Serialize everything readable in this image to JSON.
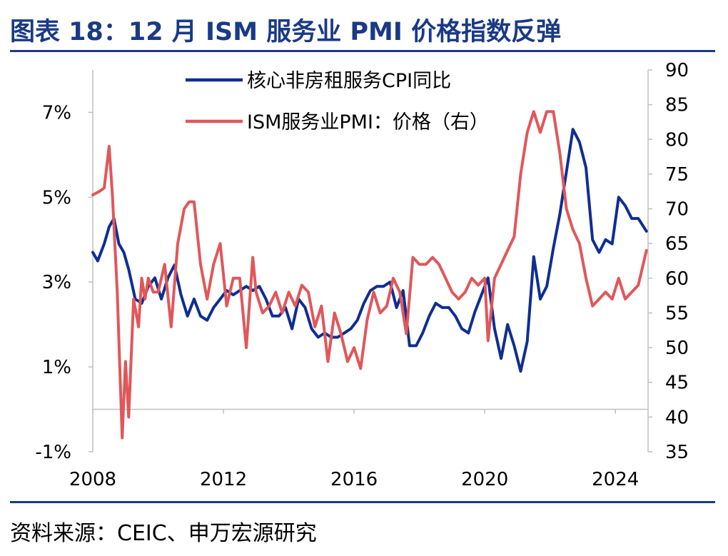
{
  "header": {
    "title": "图表 18：12 月 ISM 服务业 PMI 价格指数反弹"
  },
  "footer": {
    "source": "资料来源：CEIC、申万宏源研究"
  },
  "chart_data": {
    "type": "line",
    "title": "图表 18：12 月 ISM 服务业 PMI 价格指数反弹",
    "x_ticks": [
      "2008",
      "2012",
      "2016",
      "2020",
      "2024"
    ],
    "xlim": [
      2008.0,
      2025.0
    ],
    "left_axis": {
      "ticks": [
        "7%",
        "5%",
        "3%",
        "1%",
        "-1%"
      ],
      "ylim": [
        -1,
        8
      ]
    },
    "right_axis": {
      "ticks": [
        "90",
        "85",
        "80",
        "75",
        "70",
        "65",
        "60",
        "55",
        "50",
        "45",
        "40",
        "35"
      ],
      "ylim": [
        35,
        90
      ]
    },
    "legend_position": "top-center",
    "series": [
      {
        "name": "核心非房租服务CPI同比",
        "axis": "left",
        "color": "#0f2e92",
        "x": [
          2008.0,
          2008.15,
          2008.35,
          2008.5,
          2008.65,
          2008.8,
          2008.95,
          2009.1,
          2009.3,
          2009.5,
          2009.7,
          2009.9,
          2010.1,
          2010.3,
          2010.5,
          2010.7,
          2010.9,
          2011.1,
          2011.3,
          2011.5,
          2011.7,
          2011.9,
          2012.1,
          2012.3,
          2012.5,
          2012.7,
          2012.9,
          2013.1,
          2013.3,
          2013.5,
          2013.7,
          2013.9,
          2014.1,
          2014.3,
          2014.5,
          2014.7,
          2014.9,
          2015.1,
          2015.3,
          2015.5,
          2015.7,
          2015.9,
          2016.1,
          2016.3,
          2016.5,
          2016.7,
          2016.9,
          2017.1,
          2017.3,
          2017.5,
          2017.7,
          2017.9,
          2018.1,
          2018.3,
          2018.5,
          2018.7,
          2018.9,
          2019.1,
          2019.3,
          2019.5,
          2019.7,
          2019.9,
          2020.1,
          2020.3,
          2020.5,
          2020.7,
          2020.9,
          2021.1,
          2021.3,
          2021.5,
          2021.7,
          2021.9,
          2022.1,
          2022.3,
          2022.5,
          2022.7,
          2022.9,
          2023.1,
          2023.3,
          2023.5,
          2023.7,
          2023.9,
          2024.1,
          2024.3,
          2024.5,
          2024.7,
          2024.95
        ],
        "values": [
          3.7,
          3.5,
          3.9,
          4.3,
          4.5,
          3.9,
          3.7,
          3.3,
          2.6,
          2.5,
          2.9,
          3.1,
          2.6,
          3.1,
          3.4,
          2.7,
          2.2,
          2.6,
          2.2,
          2.1,
          2.4,
          2.6,
          2.8,
          2.7,
          2.8,
          2.9,
          2.8,
          2.9,
          2.6,
          2.2,
          2.2,
          2.4,
          1.9,
          2.6,
          2.4,
          1.9,
          1.7,
          1.8,
          1.7,
          1.7,
          1.8,
          1.9,
          2.1,
          2.5,
          2.8,
          2.9,
          2.9,
          3.0,
          2.4,
          2.8,
          1.5,
          1.5,
          1.8,
          2.2,
          2.5,
          2.4,
          2.4,
          2.2,
          1.9,
          1.8,
          2.3,
          2.7,
          3.1,
          1.9,
          1.2,
          2.0,
          1.5,
          0.9,
          1.6,
          3.6,
          2.6,
          2.9,
          3.8,
          4.6,
          5.6,
          6.6,
          6.3,
          5.7,
          4.0,
          3.7,
          4.0,
          3.9,
          5.0,
          4.8,
          4.5,
          4.5,
          4.2
        ]
      },
      {
        "name": "ISM服务业PMI：价格（右）",
        "axis": "right",
        "color": "#e0575a",
        "x": [
          2008.0,
          2008.2,
          2008.35,
          2008.5,
          2008.6,
          2008.75,
          2008.9,
          2009.0,
          2009.1,
          2009.25,
          2009.4,
          2009.5,
          2009.6,
          2009.7,
          2009.85,
          2010.0,
          2010.2,
          2010.4,
          2010.6,
          2010.8,
          2010.95,
          2011.1,
          2011.3,
          2011.5,
          2011.7,
          2011.9,
          2012.1,
          2012.3,
          2012.5,
          2012.7,
          2012.9,
          2013.0,
          2013.2,
          2013.4,
          2013.6,
          2013.8,
          2014.0,
          2014.2,
          2014.4,
          2014.6,
          2014.8,
          2015.0,
          2015.2,
          2015.4,
          2015.6,
          2015.8,
          2016.0,
          2016.2,
          2016.4,
          2016.6,
          2016.8,
          2017.0,
          2017.2,
          2017.4,
          2017.6,
          2017.8,
          2018.0,
          2018.2,
          2018.4,
          2018.6,
          2018.8,
          2019.0,
          2019.2,
          2019.4,
          2019.6,
          2019.8,
          2020.0,
          2020.1,
          2020.3,
          2020.5,
          2020.7,
          2020.9,
          2021.1,
          2021.3,
          2021.5,
          2021.7,
          2021.9,
          2022.1,
          2022.3,
          2022.5,
          2022.7,
          2022.9,
          2023.1,
          2023.3,
          2023.5,
          2023.7,
          2023.9,
          2024.1,
          2024.3,
          2024.5,
          2024.7,
          2024.95
        ],
        "values": [
          72,
          72.5,
          73,
          79,
          72,
          58,
          37,
          48,
          40,
          57,
          53,
          60,
          57,
          60,
          58,
          58,
          62,
          53,
          65,
          70,
          71,
          71,
          62,
          57,
          62,
          65,
          56,
          60,
          60,
          50,
          63,
          58,
          55,
          56,
          58,
          55,
          58,
          56,
          59,
          58,
          53,
          56,
          48,
          55,
          52,
          48,
          50,
          47,
          54,
          58,
          55,
          56,
          60,
          58,
          52,
          63,
          62,
          62,
          63,
          62,
          60,
          58,
          57,
          58,
          60,
          59,
          60,
          51,
          60,
          62,
          64,
          66,
          75,
          81,
          84,
          81,
          84,
          84,
          78,
          70,
          67,
          65,
          60,
          56,
          57,
          58,
          57,
          60,
          57,
          58,
          59,
          64
        ]
      }
    ]
  }
}
